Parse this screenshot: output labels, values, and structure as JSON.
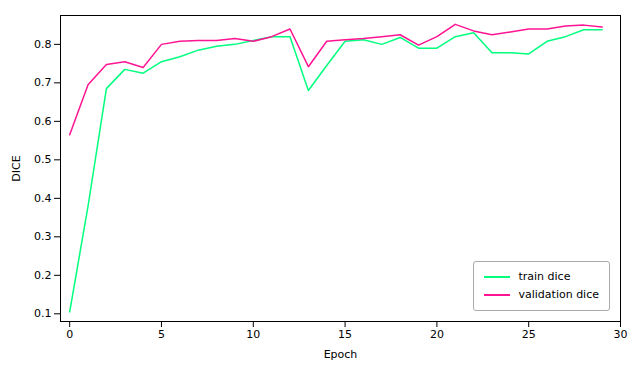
{
  "chart_data": {
    "type": "line",
    "xlabel": "Epoch",
    "ylabel": "DICE",
    "x": [
      0,
      1,
      2,
      3,
      4,
      5,
      6,
      7,
      8,
      9,
      10,
      11,
      12,
      13,
      14,
      15,
      16,
      17,
      18,
      19,
      20,
      21,
      22,
      23,
      24,
      25,
      26,
      27,
      28,
      29
    ],
    "series": [
      {
        "name": "train dice",
        "color": "#00FF7F",
        "values": [
          0.105,
          0.38,
          0.685,
          0.735,
          0.725,
          0.755,
          0.768,
          0.785,
          0.795,
          0.8,
          0.81,
          0.82,
          0.82,
          0.68,
          0.745,
          0.808,
          0.812,
          0.8,
          0.818,
          0.79,
          0.79,
          0.82,
          0.83,
          0.778,
          0.778,
          0.775,
          0.808,
          0.82,
          0.838,
          0.838
        ]
      },
      {
        "name": "validation dice",
        "color": "#FF1493",
        "values": [
          0.565,
          0.695,
          0.748,
          0.755,
          0.74,
          0.8,
          0.808,
          0.81,
          0.81,
          0.815,
          0.808,
          0.82,
          0.84,
          0.742,
          0.808,
          0.812,
          0.815,
          0.82,
          0.825,
          0.798,
          0.82,
          0.852,
          0.835,
          0.825,
          0.832,
          0.84,
          0.84,
          0.848,
          0.85,
          0.845
        ]
      }
    ],
    "xlim": [
      -0.5,
      30
    ],
    "ylim": [
      0.08,
      0.875
    ],
    "xticks": [
      0,
      5,
      10,
      15,
      20,
      25,
      30
    ],
    "yticks": [
      0.1,
      0.2,
      0.3,
      0.4,
      0.5,
      0.6,
      0.7,
      0.8
    ],
    "grid": false,
    "legend": "lower right"
  }
}
